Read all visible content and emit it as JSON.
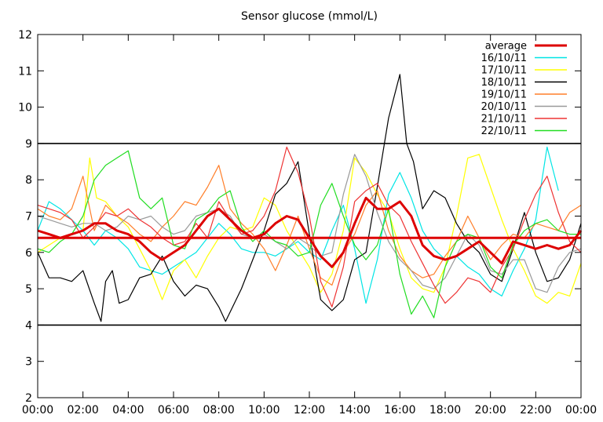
{
  "chart_data": {
    "type": "line",
    "title": "Sensor glucose (mmol/L)",
    "xlabel": "",
    "ylabel": "",
    "xlim": [
      0,
      24
    ],
    "ylim": [
      2,
      12
    ],
    "xtick_values": [
      0,
      2,
      4,
      6,
      8,
      10,
      12,
      14,
      16,
      18,
      20,
      22,
      24
    ],
    "xtick_labels": [
      "00:00",
      "02:00",
      "04:00",
      "06:00",
      "08:00",
      "10:00",
      "12:00",
      "14:00",
      "16:00",
      "18:00",
      "20:00",
      "22:00",
      "00:00"
    ],
    "ytick_values": [
      2,
      3,
      4,
      5,
      6,
      7,
      8,
      9,
      10,
      11,
      12
    ],
    "ytick_labels": [
      "2",
      "3",
      "4",
      "5",
      "6",
      "7",
      "8",
      "9",
      "10",
      "11",
      "12"
    ],
    "legend_position": "top-right",
    "reference_lines": [
      {
        "name": "upper-target",
        "y": 9,
        "color": "#000000"
      },
      {
        "name": "lower-target",
        "y": 4,
        "color": "#000000"
      },
      {
        "name": "overall-average",
        "y": 6.4,
        "color": "#dd0000"
      }
    ],
    "series": [
      {
        "name": "average",
        "color": "#dd0000",
        "width": 3,
        "x": [
          0,
          0.5,
          1,
          1.5,
          2,
          2.5,
          3,
          3.5,
          4,
          4.5,
          5,
          5.5,
          6,
          6.5,
          7,
          7.5,
          8,
          8.5,
          9,
          9.5,
          10,
          10.5,
          11,
          11.5,
          12,
          12.5,
          13,
          13.5,
          14,
          14.5,
          15,
          15.5,
          16,
          16.5,
          17,
          17.5,
          18,
          18.5,
          19,
          19.5,
          20,
          20.5,
          21,
          21.5,
          22,
          22.5,
          23,
          23.5,
          24
        ],
        "y": [
          6.6,
          6.5,
          6.4,
          6.5,
          6.6,
          6.8,
          6.8,
          6.6,
          6.5,
          6.3,
          6.0,
          5.8,
          6.0,
          6.2,
          6.6,
          7.0,
          7.2,
          6.9,
          6.6,
          6.4,
          6.5,
          6.8,
          7.0,
          6.9,
          6.4,
          5.9,
          5.6,
          6.0,
          6.8,
          7.5,
          7.2,
          7.2,
          7.4,
          7.0,
          6.2,
          5.9,
          5.8,
          5.9,
          6.1,
          6.3,
          6.0,
          5.7,
          6.3,
          6.2,
          6.1,
          6.2,
          6.1,
          6.2,
          6.6
        ]
      },
      {
        "name": "16/10/11",
        "color": "#00e5e5",
        "width": 1.2,
        "x": [
          0,
          0.5,
          1,
          1.5,
          2,
          2.5,
          3,
          3.5,
          4,
          4.5,
          5,
          5.5,
          6,
          6.5,
          7,
          7.5,
          8,
          8.5,
          9,
          9.5,
          10,
          10.5,
          11,
          11.5,
          12,
          12.5,
          13,
          13.5,
          14,
          14.5,
          15,
          15.5,
          16,
          16.5,
          17,
          17.5,
          18,
          18.5,
          19,
          19.5,
          20,
          20.5,
          21,
          21.5,
          22,
          22.5,
          23
        ],
        "y": [
          6.6,
          7.4,
          7.2,
          6.9,
          6.6,
          6.2,
          6.6,
          6.4,
          6.1,
          5.6,
          5.5,
          5.4,
          5.6,
          5.8,
          6.0,
          6.4,
          6.8,
          6.5,
          6.1,
          6.0,
          6.0,
          5.9,
          6.1,
          6.3,
          6.0,
          5.8,
          6.6,
          7.3,
          6.1,
          4.6,
          5.8,
          7.6,
          8.2,
          7.5,
          6.6,
          6.1,
          5.8,
          5.9,
          5.6,
          5.4,
          5.0,
          4.8,
          5.5,
          6.1,
          6.9,
          8.9,
          7.7
        ]
      },
      {
        "name": "17/10/11",
        "color": "#ffff00",
        "width": 1.2,
        "x": [
          0,
          0.5,
          1,
          1.5,
          2,
          2.3,
          2.6,
          3,
          3.5,
          4,
          4.5,
          5,
          5.5,
          6,
          6.5,
          7,
          7.5,
          8,
          8.5,
          9,
          9.5,
          10,
          10.5,
          11,
          11.5,
          12,
          12.5,
          13,
          13.5,
          14,
          14.5,
          15,
          15.5,
          16,
          16.5,
          17,
          17.5,
          18,
          18.5,
          19,
          19.5,
          20,
          20.5,
          21,
          21.5,
          22,
          22.5,
          23,
          23.5,
          24
        ],
        "y": [
          6.0,
          6.2,
          6.4,
          6.5,
          6.6,
          8.6,
          7.5,
          7.4,
          7.0,
          6.7,
          6.1,
          5.5,
          4.7,
          5.5,
          5.8,
          5.3,
          5.9,
          6.4,
          6.7,
          6.6,
          6.7,
          7.5,
          7.3,
          6.6,
          6.1,
          5.6,
          4.9,
          5.4,
          6.6,
          8.6,
          8.2,
          7.6,
          7.1,
          6.1,
          5.3,
          5.0,
          4.9,
          5.6,
          7.0,
          8.6,
          8.7,
          7.8,
          6.9,
          6.1,
          5.5,
          4.8,
          4.6,
          4.9,
          4.8,
          5.7
        ]
      },
      {
        "name": "18/10/11",
        "color": "#000000",
        "width": 1.2,
        "x": [
          0,
          0.5,
          1,
          1.5,
          2,
          2.5,
          2.8,
          3,
          3.3,
          3.6,
          4,
          4.5,
          5,
          5.5,
          6,
          6.5,
          7,
          7.5,
          8,
          8.3,
          9,
          9.5,
          10,
          10.5,
          11,
          11.5,
          12,
          12.5,
          13,
          13.5,
          14,
          14.5,
          15,
          15.5,
          16,
          16.3,
          16.6,
          17,
          17.5,
          18,
          18.5,
          19,
          19.5,
          20,
          20.5,
          21,
          21.5,
          22,
          22.5,
          23,
          23.5,
          24
        ],
        "y": [
          6.0,
          5.3,
          5.3,
          5.2,
          5.5,
          4.6,
          4.1,
          5.2,
          5.5,
          4.6,
          4.7,
          5.3,
          5.4,
          5.9,
          5.2,
          4.8,
          5.1,
          5.0,
          4.5,
          4.1,
          5.0,
          5.8,
          6.6,
          7.6,
          7.9,
          8.5,
          6.5,
          4.7,
          4.4,
          4.7,
          5.8,
          6.0,
          7.8,
          9.7,
          10.9,
          9.0,
          8.5,
          7.2,
          7.7,
          7.5,
          6.8,
          6.3,
          6.0,
          5.4,
          5.2,
          6.1,
          7.1,
          6.0,
          5.2,
          5.3,
          5.8,
          6.8
        ]
      },
      {
        "name": "19/10/11",
        "color": "#ff7f2a",
        "width": 1.2,
        "x": [
          0,
          0.5,
          1,
          1.5,
          2,
          2.5,
          3,
          3.5,
          4,
          4.5,
          5,
          5.5,
          6,
          6.5,
          7,
          7.5,
          8,
          8.5,
          9,
          9.5,
          10,
          10.5,
          11,
          11.5,
          12,
          12.5,
          13,
          13.5,
          14,
          14.5,
          15,
          15.5,
          16,
          16.5,
          17,
          17.5,
          18,
          18.5,
          19,
          19.5,
          20,
          20.5,
          21,
          21.5,
          22,
          22.5,
          23,
          23.5,
          24
        ],
        "y": [
          7.2,
          7.0,
          6.9,
          7.2,
          8.1,
          6.6,
          7.3,
          7.0,
          6.8,
          6.5,
          6.3,
          6.7,
          7.0,
          7.4,
          7.3,
          7.8,
          8.4,
          7.2,
          6.8,
          6.5,
          6.1,
          5.5,
          6.2,
          7.0,
          6.1,
          5.3,
          5.1,
          6.0,
          6.5,
          7.3,
          7.7,
          6.6,
          5.9,
          5.5,
          5.3,
          5.4,
          5.9,
          6.3,
          7.0,
          6.4,
          5.8,
          6.2,
          6.5,
          6.4,
          6.8,
          6.7,
          6.6,
          7.1,
          7.3
        ]
      },
      {
        "name": "20/10/11",
        "color": "#999999",
        "width": 1.2,
        "x": [
          0,
          0.5,
          1,
          1.5,
          2,
          2.5,
          3,
          3.5,
          4,
          4.5,
          5,
          5.5,
          6,
          6.5,
          7,
          7.5,
          8,
          8.5,
          9,
          9.5,
          10,
          10.5,
          11,
          11.5,
          12,
          12.5,
          13,
          13.5,
          14,
          14.5,
          15,
          15.5,
          16,
          16.5,
          17,
          17.5,
          18,
          18.5,
          19,
          19.5,
          20,
          20.5,
          21,
          21.5,
          22,
          22.5,
          23,
          23.5,
          24
        ],
        "y": [
          7.0,
          6.9,
          6.8,
          6.7,
          6.8,
          6.8,
          6.6,
          6.7,
          7.0,
          6.9,
          7.0,
          6.7,
          6.5,
          6.6,
          7.0,
          7.1,
          7.2,
          7.0,
          6.5,
          6.4,
          6.5,
          6.3,
          6.1,
          6.4,
          6.2,
          5.9,
          6.0,
          7.6,
          8.7,
          8.1,
          7.1,
          6.3,
          5.8,
          5.5,
          5.1,
          5.0,
          5.3,
          5.9,
          6.5,
          6.2,
          5.5,
          5.4,
          5.8,
          5.8,
          5.0,
          4.9,
          5.6,
          6.0,
          6.1
        ]
      },
      {
        "name": "21/10/11",
        "color": "#ee3333",
        "width": 1.2,
        "x": [
          0,
          0.5,
          1,
          1.5,
          2,
          2.5,
          3,
          3.5,
          4,
          4.5,
          5,
          5.5,
          6,
          6.5,
          7,
          7.5,
          8,
          8.5,
          9,
          9.5,
          10,
          10.5,
          11,
          11.5,
          12,
          12.5,
          13,
          13.5,
          14,
          14.5,
          15,
          15.5,
          16,
          16.5,
          17,
          17.5,
          18,
          18.5,
          19,
          19.5,
          20,
          20.5,
          21,
          21.5,
          22,
          22.5,
          23,
          23.5,
          24
        ],
        "y": [
          7.3,
          7.2,
          7.1,
          6.9,
          6.4,
          6.7,
          7.1,
          7.0,
          7.2,
          6.9,
          6.7,
          6.4,
          6.2,
          6.3,
          6.8,
          6.4,
          7.4,
          6.9,
          6.5,
          6.6,
          7.0,
          7.7,
          8.9,
          8.2,
          7.0,
          5.2,
          4.5,
          5.6,
          7.4,
          7.7,
          7.9,
          7.3,
          7.0,
          6.3,
          5.7,
          5.1,
          4.6,
          4.9,
          5.3,
          5.2,
          4.9,
          5.6,
          6.1,
          6.9,
          7.6,
          8.1,
          7.1,
          6.3,
          6.0
        ]
      },
      {
        "name": "22/10/11",
        "color": "#22dd22",
        "width": 1.2,
        "x": [
          0,
          0.5,
          1,
          1.5,
          2,
          2.5,
          3,
          3.5,
          4,
          4.5,
          5,
          5.5,
          6,
          6.5,
          7,
          7.5,
          8,
          8.5,
          9,
          9.5,
          10,
          10.5,
          11,
          11.5,
          12,
          12.5,
          13,
          13.5,
          14,
          14.5,
          15,
          15.5,
          16,
          16.5,
          17,
          17.5,
          18,
          18.5,
          19,
          19.5,
          20,
          20.5,
          21,
          21.5,
          22,
          22.5,
          23,
          23.5,
          24
        ],
        "y": [
          6.1,
          6.0,
          6.3,
          6.5,
          7.0,
          8.0,
          8.4,
          8.6,
          8.8,
          7.5,
          7.2,
          7.5,
          6.2,
          6.1,
          6.9,
          7.1,
          7.5,
          7.7,
          6.7,
          6.3,
          6.6,
          6.3,
          6.2,
          5.9,
          6.0,
          7.3,
          7.9,
          7.0,
          6.2,
          5.8,
          6.2,
          7.2,
          5.4,
          4.3,
          4.8,
          4.2,
          5.6,
          6.3,
          6.5,
          6.4,
          5.6,
          5.3,
          6.2,
          6.6,
          6.8,
          6.9,
          6.6,
          6.5,
          6.5
        ]
      }
    ]
  }
}
